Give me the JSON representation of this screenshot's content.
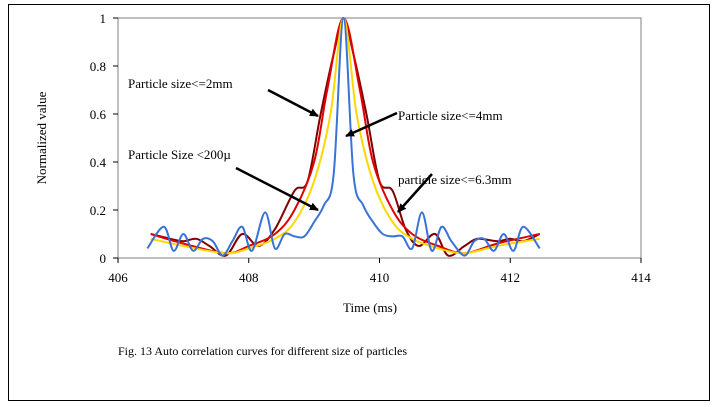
{
  "chart_data": {
    "type": "line",
    "title": "",
    "xlabel": "Time (ms)",
    "ylabel": "Normalized value",
    "xlim": [
      406,
      414
    ],
    "ylim": [
      0,
      1
    ],
    "xticks": [
      "406",
      "408",
      "410",
      "412",
      "414"
    ],
    "yticks": [
      "0",
      "0.2",
      "0.4",
      "0.6",
      "0.8",
      "1"
    ],
    "grid": false,
    "series": [
      {
        "color": "#800000",
        "x": [
          406.5,
          406.8,
          407.0,
          407.2,
          407.4,
          407.65,
          407.9,
          408.15,
          408.4,
          408.7,
          408.9,
          409.1,
          409.3,
          409.45,
          409.6,
          409.8,
          410.0,
          410.2,
          410.4,
          410.6,
          410.85,
          411.05,
          411.3,
          411.5,
          411.8,
          412.0,
          412.2,
          412.45
        ],
        "y": [
          0.1,
          0.08,
          0.07,
          0.08,
          0.05,
          0.01,
          0.1,
          0.05,
          0.12,
          0.28,
          0.32,
          0.6,
          0.85,
          1.0,
          0.85,
          0.6,
          0.32,
          0.28,
          0.12,
          0.05,
          0.1,
          0.01,
          0.05,
          0.08,
          0.07,
          0.08,
          0.07,
          0.1
        ]
      },
      {
        "color": "#e00000",
        "x": [
          406.5,
          407.0,
          407.65,
          408.0,
          408.4,
          408.7,
          409.0,
          409.2,
          409.45,
          409.7,
          409.9,
          410.2,
          410.5,
          410.9,
          411.3,
          411.8,
          412.45
        ],
        "y": [
          0.1,
          0.06,
          0.02,
          0.05,
          0.1,
          0.2,
          0.4,
          0.7,
          1.0,
          0.7,
          0.4,
          0.2,
          0.1,
          0.05,
          0.02,
          0.06,
          0.1
        ]
      },
      {
        "color": "#ffd700",
        "x": [
          406.5,
          407.0,
          407.65,
          408.0,
          408.4,
          408.7,
          409.0,
          409.25,
          409.45,
          409.65,
          409.9,
          410.2,
          410.5,
          410.9,
          411.3,
          411.8,
          412.45
        ],
        "y": [
          0.08,
          0.05,
          0.02,
          0.04,
          0.08,
          0.15,
          0.32,
          0.6,
          1.0,
          0.6,
          0.32,
          0.15,
          0.08,
          0.04,
          0.02,
          0.05,
          0.08
        ]
      },
      {
        "color": "#3a72d8",
        "x": [
          406.45,
          406.7,
          406.85,
          407.0,
          407.15,
          407.3,
          407.45,
          407.6,
          407.75,
          407.9,
          408.05,
          408.25,
          408.4,
          408.55,
          408.7,
          408.85,
          409.0,
          409.15,
          409.3,
          409.45,
          409.6,
          409.75,
          409.9,
          410.05,
          410.2,
          410.35,
          410.5,
          410.65,
          410.8,
          410.95,
          411.1,
          411.3,
          411.45,
          411.6,
          411.75,
          411.9,
          412.05,
          412.2,
          412.45
        ],
        "y": [
          0.04,
          0.13,
          0.03,
          0.1,
          0.03,
          0.08,
          0.07,
          0.01,
          0.07,
          0.13,
          0.03,
          0.19,
          0.04,
          0.1,
          0.09,
          0.09,
          0.15,
          0.22,
          0.35,
          1.0,
          0.35,
          0.22,
          0.15,
          0.1,
          0.09,
          0.09,
          0.04,
          0.19,
          0.03,
          0.13,
          0.07,
          0.01,
          0.07,
          0.08,
          0.03,
          0.1,
          0.03,
          0.13,
          0.04
        ]
      }
    ],
    "annotations": [
      "Particle size<=2mm",
      "Particle size<=4mm",
      "Particle Size <200µ",
      "particle size<=6.3mm"
    ]
  },
  "caption": "Fig. 13 Auto correlation curves for different size of particles"
}
